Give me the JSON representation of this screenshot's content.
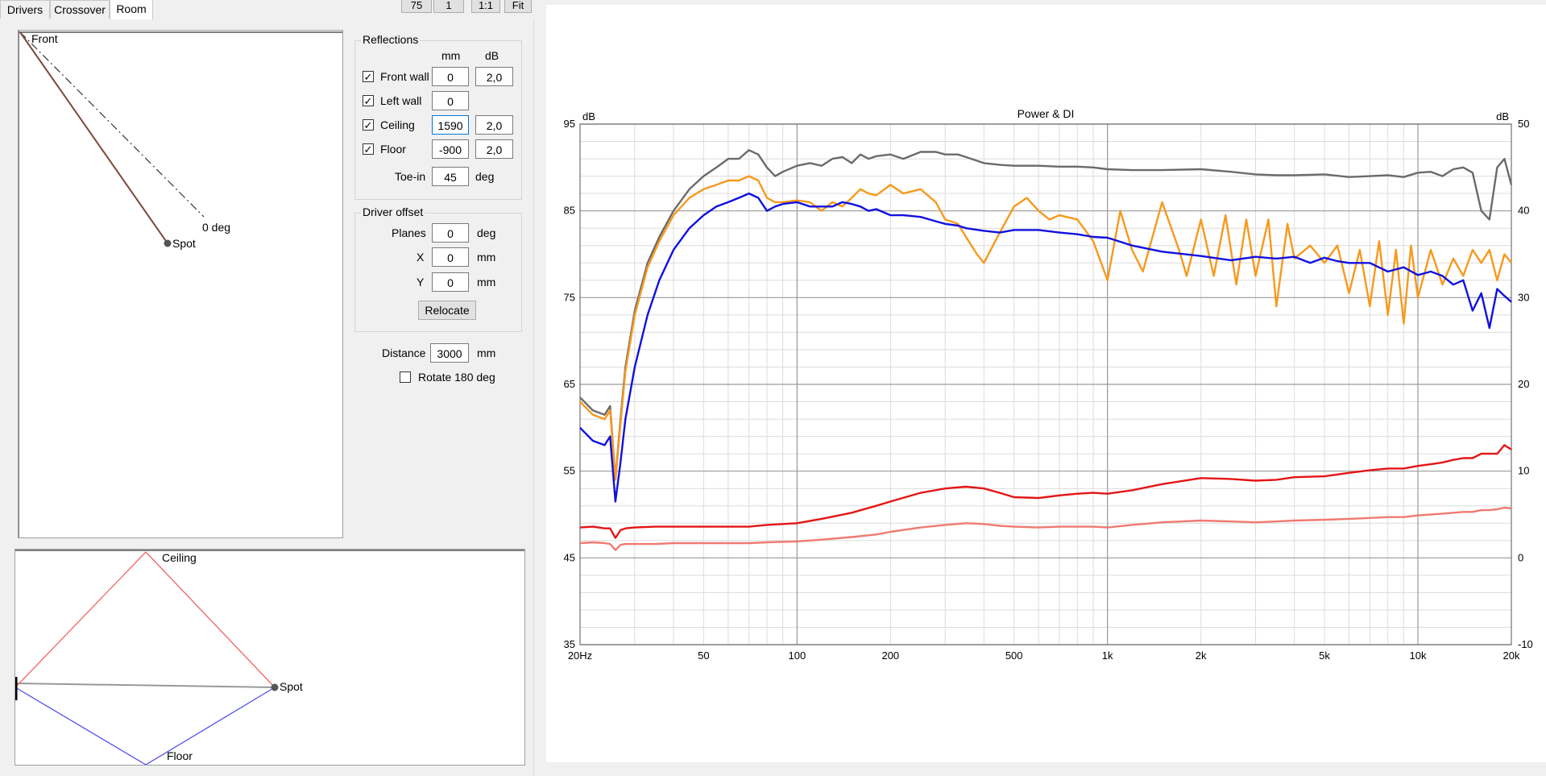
{
  "tabs": [
    {
      "label": "Drivers",
      "active": false
    },
    {
      "label": "Crossover",
      "active": false
    },
    {
      "label": "Room",
      "active": true
    }
  ],
  "toolbar": {
    "btn1": "75",
    "btn2": "1",
    "btn3": "1:1",
    "btn4": "Fit"
  },
  "top_view": {
    "front_label": "Front",
    "zero_deg_label": "0 deg",
    "spot_label": "Spot"
  },
  "side_view": {
    "ceiling_label": "Ceiling",
    "floor_label": "Floor",
    "spot_label": "Spot"
  },
  "reflections": {
    "title": "Reflections",
    "col_mm": "mm",
    "col_db": "dB",
    "rows": [
      {
        "label": "Front wall",
        "checked": true,
        "mm": "0",
        "db": "2,0"
      },
      {
        "label": "Left wall",
        "checked": true,
        "mm": "0",
        "db": ""
      },
      {
        "label": "Ceiling",
        "checked": true,
        "mm": "1590",
        "db": "2,0"
      },
      {
        "label": "Floor",
        "checked": true,
        "mm": "-900",
        "db": "2,0"
      }
    ],
    "toein_label": "Toe-in",
    "toein_value": "45",
    "toein_unit": "deg"
  },
  "driver_offset": {
    "title": "Driver offset",
    "planes_label": "Planes",
    "planes_value": "0",
    "planes_unit": "deg",
    "x_label": "X",
    "x_value": "0",
    "x_unit": "mm",
    "y_label": "Y",
    "y_value": "0",
    "y_unit": "mm",
    "relocate_label": "Relocate"
  },
  "distance": {
    "label": "Distance",
    "value": "3000",
    "unit": "mm"
  },
  "rotate": {
    "label": "Rotate 180 deg",
    "checked": false
  },
  "colors": {
    "grey": "#6b6b6b",
    "orange": "#f7991c",
    "blue": "#1010e0",
    "red": "#e31515",
    "pink": "#f07a72"
  },
  "chart_data": {
    "type": "line",
    "title": "Power & DI",
    "ylabel_left": "dB",
    "ylabel_right": "dB",
    "x_scale": "log",
    "xlim": [
      20,
      20000
    ],
    "ylim_left": [
      35,
      95
    ],
    "ylim_right": [
      -10,
      50
    ],
    "x_ticks": [
      {
        "v": 20,
        "label": "20Hz"
      },
      {
        "v": 50,
        "label": "50"
      },
      {
        "v": 100,
        "label": "100"
      },
      {
        "v": 200,
        "label": "200"
      },
      {
        "v": 500,
        "label": "500"
      },
      {
        "v": 1000,
        "label": "1k"
      },
      {
        "v": 2000,
        "label": "2k"
      },
      {
        "v": 5000,
        "label": "5k"
      },
      {
        "v": 10000,
        "label": "10k"
      },
      {
        "v": 20000,
        "label": "20k"
      }
    ],
    "y_ticks_left": [
      35,
      45,
      55,
      65,
      75,
      85,
      95
    ],
    "y_ticks_right": [
      -10,
      0,
      10,
      20,
      30,
      40,
      50
    ],
    "grid": true,
    "series": [
      {
        "color": "#6b6b6b",
        "axis": "left",
        "x": [
          20,
          22,
          24,
          25,
          26,
          27,
          28,
          30,
          33,
          36,
          40,
          45,
          50,
          55,
          60,
          65,
          70,
          75,
          80,
          85,
          90,
          100,
          110,
          120,
          130,
          140,
          150,
          160,
          170,
          180,
          200,
          220,
          250,
          280,
          300,
          330,
          350,
          400,
          450,
          500,
          600,
          700,
          800,
          900,
          1000,
          1200,
          1500,
          2000,
          2500,
          3000,
          3500,
          4000,
          5000,
          6000,
          7000,
          8000,
          9000,
          10000,
          11000,
          12000,
          13000,
          14000,
          15000,
          16000,
          17000,
          18000,
          19000,
          20000
        ],
        "y": [
          63.5,
          62,
          61.5,
          62.5,
          54,
          61,
          67,
          73.5,
          79,
          82,
          85,
          87.5,
          89,
          90,
          91,
          91,
          92,
          91.5,
          90,
          89,
          89.5,
          90.2,
          90.5,
          90.2,
          91,
          91.2,
          90.5,
          91.5,
          91,
          91.3,
          91.5,
          91,
          91.8,
          91.8,
          91.5,
          91.5,
          91.2,
          90.5,
          90.3,
          90.2,
          90.2,
          90.1,
          90.1,
          90,
          89.8,
          89.7,
          89.7,
          89.8,
          89.5,
          89.2,
          89.1,
          89.1,
          89.2,
          88.9,
          89,
          89.1,
          88.9,
          89.4,
          89.5,
          89,
          89.8,
          90,
          89.4,
          85,
          84,
          90,
          91,
          88
        ]
      },
      {
        "color": "#f7991c",
        "axis": "left",
        "x": [
          20,
          22,
          24,
          25,
          26,
          27,
          28,
          30,
          33,
          36,
          40,
          45,
          50,
          55,
          60,
          65,
          70,
          75,
          80,
          85,
          90,
          100,
          110,
          120,
          130,
          140,
          150,
          160,
          170,
          180,
          200,
          220,
          250,
          280,
          300,
          330,
          350,
          380,
          400,
          450,
          500,
          550,
          600,
          650,
          700,
          800,
          900,
          1000,
          1100,
          1200,
          1300,
          1500,
          1700,
          1800,
          2000,
          2200,
          2400,
          2600,
          2800,
          3000,
          3300,
          3500,
          3800,
          4000,
          4500,
          5000,
          5500,
          6000,
          6500,
          7000,
          7500,
          8000,
          8500,
          9000,
          9500,
          10000,
          11000,
          12000,
          13000,
          14000,
          15000,
          16000,
          17000,
          18000,
          19000,
          20000
        ],
        "y": [
          63,
          61.5,
          61,
          62,
          54,
          60.5,
          66.5,
          73,
          78.5,
          81.5,
          84.5,
          86.5,
          87.5,
          88,
          88.5,
          88.5,
          89,
          88.5,
          86.5,
          86,
          86,
          86.2,
          86,
          85,
          86,
          85.5,
          86.5,
          87.5,
          87,
          86.8,
          88,
          87,
          87.5,
          86,
          84,
          83.5,
          82,
          80,
          79,
          82.5,
          85.5,
          86.5,
          85,
          84,
          84.5,
          84,
          81.5,
          77,
          85,
          80.5,
          78,
          86,
          80.5,
          77.5,
          84,
          77.5,
          84.5,
          76.5,
          84,
          77.5,
          84,
          74,
          83.5,
          79.5,
          81,
          79,
          81,
          75.5,
          80.5,
          74,
          81.5,
          73,
          80.5,
          72,
          81,
          75,
          80.5,
          76.5,
          79.5,
          77.5,
          80.5,
          79,
          80.5,
          77,
          80,
          79
        ]
      },
      {
        "color": "#1010e0",
        "axis": "left",
        "x": [
          20,
          22,
          24,
          25,
          26,
          27,
          28,
          30,
          33,
          36,
          40,
          45,
          50,
          55,
          60,
          65,
          70,
          75,
          80,
          85,
          90,
          100,
          110,
          120,
          130,
          140,
          150,
          160,
          170,
          180,
          200,
          220,
          250,
          280,
          300,
          330,
          350,
          400,
          450,
          500,
          600,
          700,
          800,
          900,
          1000,
          1200,
          1500,
          2000,
          2500,
          3000,
          3500,
          4000,
          4500,
          5000,
          5500,
          6000,
          7000,
          8000,
          9000,
          10000,
          11000,
          12000,
          13000,
          14000,
          15000,
          16000,
          17000,
          18000,
          19000,
          20000
        ],
        "y": [
          60,
          58.5,
          58,
          59,
          51.5,
          56,
          61,
          67,
          73,
          77,
          80.5,
          83,
          84.5,
          85.5,
          86,
          86.5,
          87,
          86.5,
          85,
          85.5,
          85.8,
          86,
          85.5,
          85.5,
          85.5,
          86,
          85.8,
          85.5,
          85,
          85.2,
          84.5,
          84.5,
          84.3,
          83.8,
          83.5,
          83.3,
          83,
          82.7,
          82.5,
          82.8,
          82.8,
          82.5,
          82.3,
          82,
          81.9,
          81,
          80.3,
          79.8,
          79.3,
          79.7,
          79.5,
          79.7,
          79,
          79.6,
          79.2,
          79,
          79,
          78,
          78.5,
          77.6,
          78,
          77.5,
          76.5,
          77,
          73.5,
          75.5,
          71.5,
          76,
          75.2,
          74.5
        ]
      },
      {
        "color": "#e31515",
        "axis": "right",
        "x": [
          20,
          22,
          24,
          25,
          26,
          27,
          28,
          30,
          35,
          40,
          50,
          60,
          70,
          80,
          100,
          120,
          150,
          180,
          200,
          250,
          300,
          350,
          400,
          450,
          500,
          600,
          700,
          800,
          900,
          1000,
          1200,
          1500,
          2000,
          2500,
          3000,
          3500,
          4000,
          5000,
          6000,
          7000,
          8000,
          9000,
          10000,
          11000,
          12000,
          13000,
          14000,
          15000,
          16000,
          17000,
          18000,
          19000,
          20000
        ],
        "y": [
          3.5,
          3.6,
          3.4,
          3.4,
          2.3,
          3.2,
          3.4,
          3.5,
          3.6,
          3.6,
          3.6,
          3.6,
          3.6,
          3.8,
          4,
          4.5,
          5.2,
          6,
          6.5,
          7.5,
          8,
          8.2,
          8,
          7.5,
          7,
          6.9,
          7.2,
          7.4,
          7.5,
          7.4,
          7.8,
          8.5,
          9.2,
          9.1,
          8.9,
          9,
          9.3,
          9.4,
          9.8,
          10.1,
          10.3,
          10.3,
          10.6,
          10.8,
          11,
          11.3,
          11.5,
          11.5,
          12,
          12,
          12,
          13,
          12.5
        ]
      },
      {
        "color": "#f07a72",
        "axis": "right",
        "x": [
          20,
          22,
          24,
          25,
          26,
          27,
          28,
          30,
          35,
          40,
          50,
          60,
          70,
          80,
          100,
          120,
          150,
          180,
          200,
          250,
          300,
          350,
          400,
          450,
          500,
          600,
          700,
          800,
          900,
          1000,
          1200,
          1500,
          2000,
          2500,
          3000,
          3500,
          4000,
          5000,
          6000,
          7000,
          8000,
          9000,
          10000,
          11000,
          12000,
          13000,
          14000,
          15000,
          16000,
          17000,
          18000,
          19000,
          20000
        ],
        "y": [
          1.7,
          1.8,
          1.7,
          1.6,
          0.9,
          1.5,
          1.6,
          1.6,
          1.6,
          1.7,
          1.7,
          1.7,
          1.7,
          1.8,
          1.9,
          2.1,
          2.4,
          2.7,
          3,
          3.5,
          3.8,
          4,
          3.9,
          3.7,
          3.6,
          3.5,
          3.6,
          3.6,
          3.6,
          3.5,
          3.8,
          4.1,
          4.3,
          4.2,
          4.1,
          4.2,
          4.3,
          4.4,
          4.5,
          4.6,
          4.7,
          4.7,
          4.9,
          5,
          5.1,
          5.2,
          5.3,
          5.3,
          5.5,
          5.5,
          5.6,
          5.8,
          5.7
        ]
      }
    ]
  }
}
